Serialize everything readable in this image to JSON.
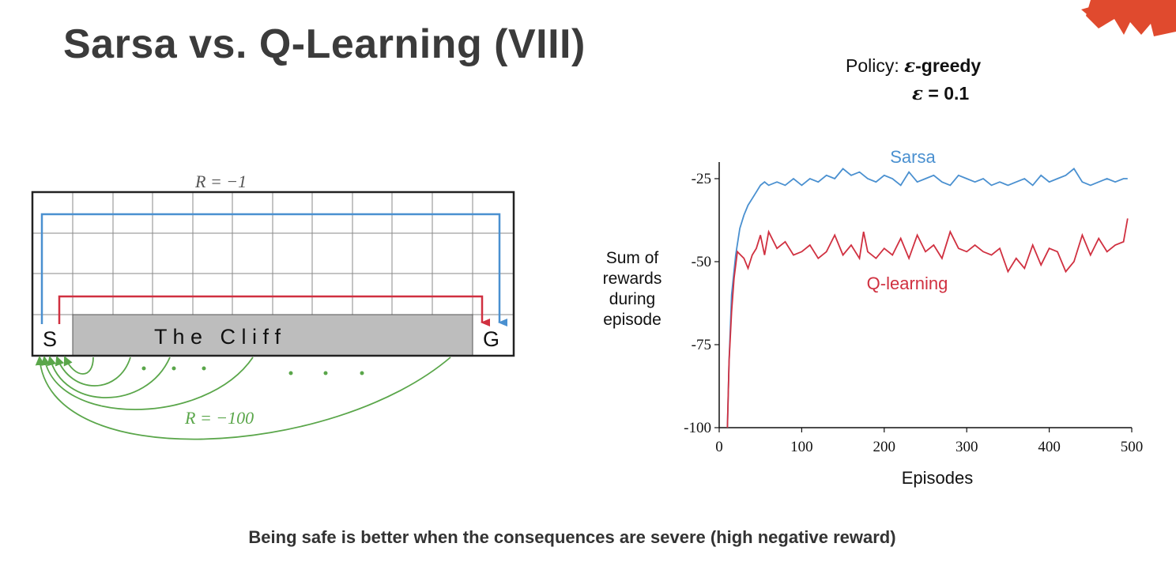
{
  "slide": {
    "title": "Sarsa vs. Q-Learning (VIII)",
    "footer": "Being safe is better when the consequences are severe (high negative reward)"
  },
  "policy": {
    "prefix": "Policy: ",
    "name": "-greedy",
    "epsilon_symbol": "ε",
    "epsilon_value": " = 0.1"
  },
  "gridworld": {
    "reward_step": "R = −1",
    "reward_cliff": "R = −100",
    "start_label": "S",
    "goal_label": "G",
    "cliff_label": "T h e   C l i f f",
    "grid_cols": 12,
    "grid_rows": 4,
    "colors": {
      "sarsa_path": "#4a90d0",
      "qlearning_path": "#d03040",
      "cliff_arrows": "#5aa64a",
      "cliff_fill": "#bdbdbd"
    }
  },
  "chart_data": {
    "type": "line",
    "xlabel": "Episodes",
    "ylabel": "Sum of rewards during episode",
    "xlim": [
      0,
      500
    ],
    "ylim": [
      -100,
      -20
    ],
    "xticks": [
      0,
      100,
      200,
      300,
      400,
      500
    ],
    "yticks": [
      -25,
      -50,
      -75,
      -100
    ],
    "series": [
      {
        "name": "Sarsa",
        "color": "#4a90d0",
        "x": [
          10,
          12,
          15,
          20,
          25,
          30,
          35,
          40,
          45,
          50,
          55,
          60,
          70,
          80,
          90,
          100,
          110,
          120,
          130,
          140,
          150,
          160,
          170,
          180,
          190,
          200,
          210,
          220,
          230,
          240,
          250,
          260,
          270,
          280,
          290,
          300,
          310,
          320,
          330,
          340,
          350,
          360,
          370,
          380,
          390,
          400,
          410,
          420,
          430,
          440,
          450,
          460,
          470,
          480,
          490,
          495
        ],
        "y": [
          -100,
          -80,
          -60,
          -48,
          -40,
          -36,
          -33,
          -31,
          -29,
          -27,
          -26,
          -27,
          -26,
          -27,
          -25,
          -27,
          -25,
          -26,
          -24,
          -25,
          -22,
          -24,
          -23,
          -25,
          -26,
          -24,
          -25,
          -27,
          -23,
          -26,
          -25,
          -24,
          -26,
          -27,
          -24,
          -25,
          -26,
          -25,
          -27,
          -26,
          -27,
          -26,
          -25,
          -27,
          -24,
          -26,
          -25,
          -24,
          -22,
          -26,
          -27,
          -26,
          -25,
          -26,
          -25,
          -25
        ]
      },
      {
        "name": "Q-learning",
        "color": "#d03040",
        "x": [
          10,
          12,
          15,
          18,
          22,
          26,
          30,
          35,
          40,
          45,
          50,
          55,
          60,
          70,
          80,
          90,
          100,
          110,
          120,
          130,
          140,
          150,
          160,
          170,
          175,
          180,
          190,
          200,
          210,
          220,
          230,
          240,
          250,
          260,
          270,
          280,
          290,
          300,
          310,
          320,
          330,
          340,
          350,
          360,
          370,
          380,
          390,
          400,
          410,
          420,
          430,
          440,
          450,
          460,
          470,
          480,
          490,
          495
        ],
        "y": [
          -100,
          -80,
          -65,
          -55,
          -47,
          -48,
          -49,
          -52,
          -48,
          -46,
          -42,
          -48,
          -41,
          -46,
          -44,
          -48,
          -47,
          -45,
          -49,
          -47,
          -42,
          -48,
          -45,
          -49,
          -41,
          -47,
          -49,
          -46,
          -48,
          -43,
          -49,
          -42,
          -47,
          -45,
          -49,
          -41,
          -46,
          -47,
          -45,
          -47,
          -48,
          -46,
          -53,
          -49,
          -52,
          -45,
          -51,
          -46,
          -47,
          -53,
          -50,
          -42,
          -48,
          -43,
          -47,
          -45,
          -44,
          -37
        ]
      }
    ]
  }
}
